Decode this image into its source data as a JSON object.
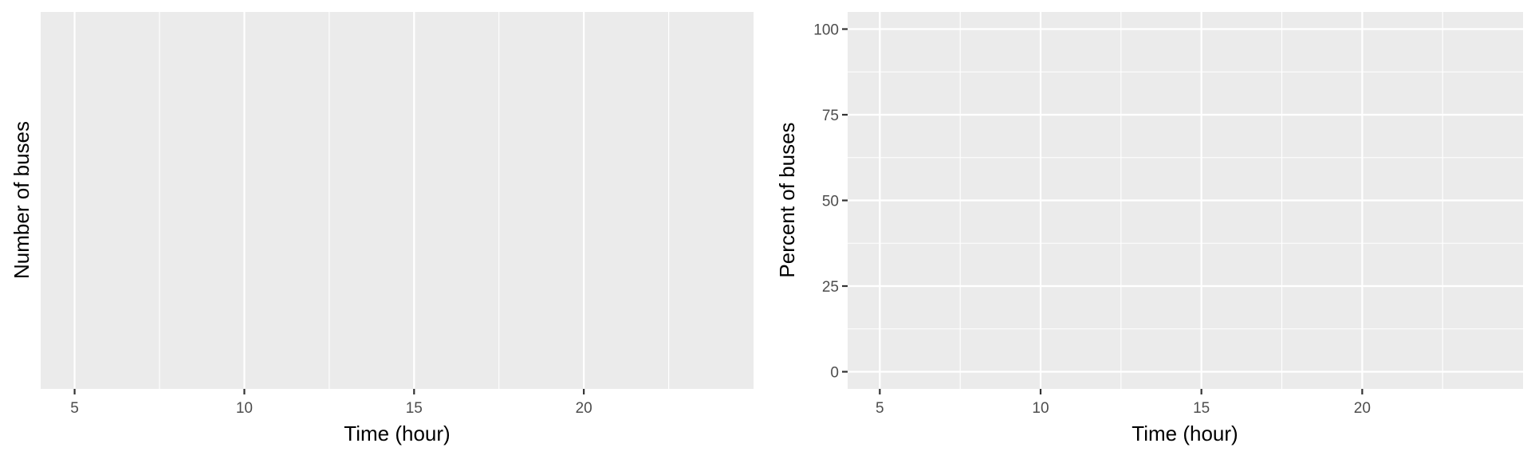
{
  "chart_data": [
    {
      "type": "line",
      "xlabel": "Time (hour)",
      "ylabel": "Number of buses",
      "xlim": [
        4.0,
        25.0
      ],
      "x_ticks": [
        5,
        10,
        15,
        20
      ],
      "x_minor_ticks": [
        7.5,
        12.5,
        17.5,
        22.5
      ],
      "y_ticks": [],
      "y_minor_ticks": [],
      "series": [],
      "grid": true
    },
    {
      "type": "line",
      "xlabel": "Time (hour)",
      "ylabel": "Percent of buses",
      "xlim": [
        4.0,
        25.0
      ],
      "ylim": [
        -5,
        105
      ],
      "x_ticks": [
        5,
        10,
        15,
        20
      ],
      "x_minor_ticks": [
        7.5,
        12.5,
        17.5,
        22.5
      ],
      "y_ticks": [
        0,
        25,
        50,
        75,
        100
      ],
      "y_minor_ticks": [
        12.5,
        37.5,
        62.5,
        87.5
      ],
      "series": [],
      "grid": true
    }
  ]
}
